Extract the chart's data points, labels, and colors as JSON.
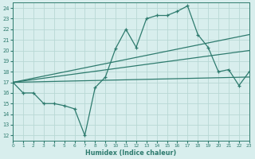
{
  "xlabel": "Humidex (Indice chaleur)",
  "bg_color": "#d8eeed",
  "grid_color": "#b8d8d5",
  "line_color": "#2e7b6e",
  "xlim": [
    0,
    23
  ],
  "ylim": [
    11.5,
    24.5
  ],
  "xticks": [
    0,
    1,
    2,
    3,
    4,
    5,
    6,
    7,
    8,
    9,
    10,
    11,
    12,
    13,
    14,
    15,
    16,
    17,
    18,
    19,
    20,
    21,
    22,
    23
  ],
  "yticks": [
    12,
    13,
    14,
    15,
    16,
    17,
    18,
    19,
    20,
    21,
    22,
    23,
    24
  ],
  "series_main": {
    "x": [
      0,
      1,
      2,
      3,
      4,
      5,
      6,
      7,
      8,
      9,
      10,
      11,
      12,
      13,
      14,
      15,
      16,
      17,
      18,
      19,
      20,
      21,
      22,
      23
    ],
    "y": [
      17,
      16,
      16,
      15,
      15,
      14.8,
      14.5,
      12,
      16.5,
      17.5,
      20.2,
      22,
      20.3,
      23,
      23.3,
      23.3,
      23.7,
      24.2,
      21.5,
      20.3,
      18,
      18.2,
      16.7,
      18
    ]
  },
  "series_lines": [
    {
      "x0": 0,
      "y0": 17,
      "x1": 23,
      "y1": 21.5
    },
    {
      "x0": 0,
      "y0": 17,
      "x1": 23,
      "y1": 20.0
    },
    {
      "x0": 0,
      "y0": 17,
      "x1": 23,
      "y1": 17.5
    }
  ]
}
